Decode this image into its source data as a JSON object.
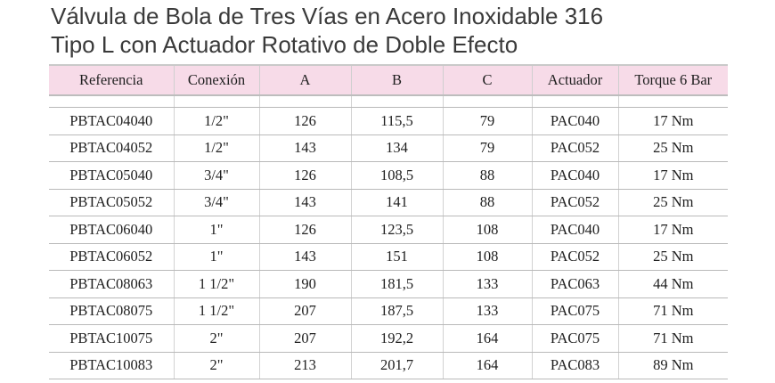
{
  "title": {
    "line1": "Válvula de Bola de Tres Vías en Acero Inoxidable 316",
    "line2": "Tipo L con Actuador Rotativo de Doble Efecto"
  },
  "table": {
    "headers": [
      "Referencia",
      "Conexión",
      "A",
      "B",
      "C",
      "Actuador",
      "Torque 6 Bar"
    ],
    "rows": [
      [
        "PBTAC04040",
        "1/2\"",
        "126",
        "115,5",
        "79",
        "PAC040",
        "17 Nm"
      ],
      [
        "PBTAC04052",
        "1/2\"",
        "143",
        "134",
        "79",
        "PAC052",
        "25 Nm"
      ],
      [
        "PBTAC05040",
        "3/4\"",
        "126",
        "108,5",
        "88",
        "PAC040",
        "17 Nm"
      ],
      [
        "PBTAC05052",
        "3/4\"",
        "143",
        "141",
        "88",
        "PAC052",
        "25 Nm"
      ],
      [
        "PBTAC06040",
        "1\"",
        "126",
        "123,5",
        "108",
        "PAC040",
        "17 Nm"
      ],
      [
        "PBTAC06052",
        "1\"",
        "143",
        "151",
        "108",
        "PAC052",
        "25 Nm"
      ],
      [
        "PBTAC08063",
        "1 1/2\"",
        "190",
        "181,5",
        "133",
        "PAC063",
        "44 Nm"
      ],
      [
        "PBTAC08075",
        "1 1/2\"",
        "207",
        "187,5",
        "133",
        "PAC075",
        "71 Nm"
      ],
      [
        "PBTAC10075",
        "2\"",
        "207",
        "192,2",
        "164",
        "PAC075",
        "71 Nm"
      ],
      [
        "PBTAC10083",
        "2\"",
        "213",
        "201,7",
        "164",
        "PAC083",
        "89 Nm"
      ]
    ]
  },
  "colors": {
    "header_background": "#f7dbe8",
    "text": "#1e1e1e",
    "title_text": "#3a3a3a"
  }
}
